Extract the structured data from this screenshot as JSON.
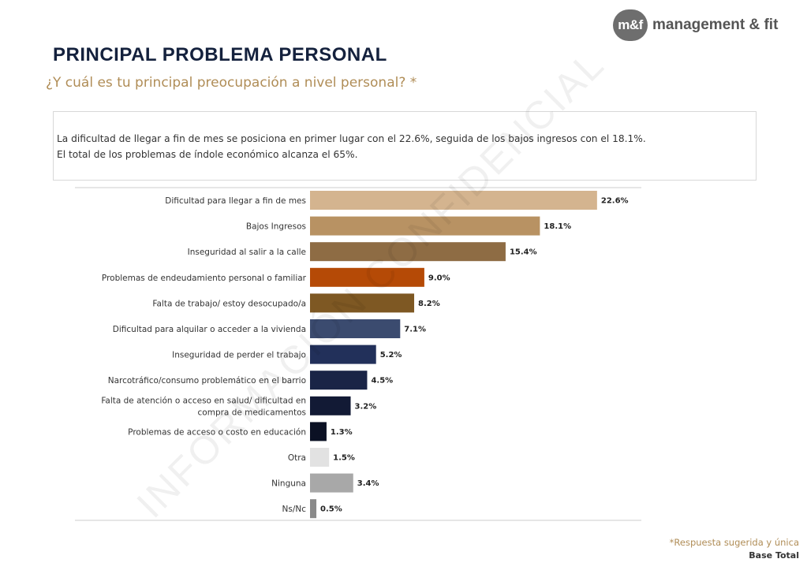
{
  "logo": {
    "mark": "m&f",
    "text": "management & fit"
  },
  "header": {
    "title": "PRINCIPAL PROBLEMA PERSONAL",
    "subtitle": "¿Y cuál es tu principal preocupación a nivel personal? *"
  },
  "summary": {
    "line1": "La dificultad de llegar a fin de mes se posiciona en primer lugar con el 22.6%, seguida de los bajos ingresos con el 18.1%.",
    "line2": "El total de los problemas de índole económico alcanza el 65%."
  },
  "chart_data": {
    "type": "bar",
    "orientation": "horizontal",
    "categories": [
      "Dificultad para llegar a fin de mes",
      "Bajos Ingresos",
      "Inseguridad al salir a la calle",
      "Problemas de endeudamiento personal o familiar",
      "Falta de trabajo/ estoy desocupado/a",
      "Dificultad para alquilar o acceder a la vivienda",
      "Inseguridad de perder el trabajo",
      "Narcotráfico/consumo problemático en el barrio",
      "Falta de atención o acceso en salud/ dificultad en compra de medicamentos",
      "Problemas de acceso o costo en educación",
      "Otra",
      "Ninguna",
      "Ns/Nc"
    ],
    "values": [
      22.6,
      18.1,
      15.4,
      9.0,
      8.2,
      7.1,
      5.2,
      4.5,
      3.2,
      1.3,
      1.5,
      3.4,
      0.5
    ],
    "value_labels": [
      "22.6%",
      "18.1%",
      "15.4%",
      "9.0%",
      "8.2%",
      "7.1%",
      "5.2%",
      "4.5%",
      "3.2%",
      "1.3%",
      "1.5%",
      "3.4%",
      "0.5%"
    ],
    "colors": [
      "#d4b48f",
      "#b89263",
      "#8e6c44",
      "#b54a06",
      "#7e5823",
      "#3b4b6f",
      "#22305a",
      "#1a2446",
      "#121a35",
      "#0b1124",
      "#e2e2e2",
      "#a8a8a8",
      "#8a8a8a"
    ],
    "xlim": [
      0,
      25
    ],
    "grid": false
  },
  "footer": {
    "footnote": "*Respuesta sugerida y única",
    "base": "Base Total"
  },
  "watermark": "INFORMACIÓN CONFIDENCIAL"
}
